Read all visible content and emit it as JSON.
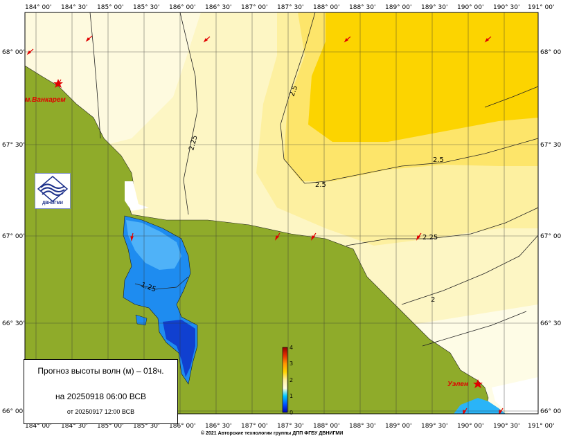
{
  "map": {
    "lon_labels": [
      "184° 00'",
      "184° 30'",
      "185° 00'",
      "185° 30'",
      "186° 00'",
      "186° 30'",
      "187° 00'",
      "187° 30'",
      "188° 00'",
      "188° 30'",
      "189° 00'",
      "189° 30'",
      "190° 00'",
      "190° 30'",
      "191° 00'"
    ],
    "lat_labels": [
      "68° 00'",
      "67° 30'",
      "67° 00'",
      "66° 30'",
      "66° 00'"
    ],
    "places": [
      "м.Ванкарем",
      "Уэлен"
    ],
    "contour_labels": [
      "2.5",
      "2.5",
      "2.5",
      "2.25",
      "2.25",
      "2",
      "1.25"
    ],
    "colorbar": {
      "ticks": [
        "0",
        "1",
        "2",
        "3",
        "4"
      ]
    },
    "colors": {
      "land": "#8fab2a",
      "sea_low": "#1e70f0",
      "sea_mid": "#fcf5c0",
      "sea_high": "#ffd400"
    }
  },
  "info": {
    "title": "Прогноз высоты волн (м) – 018ч.",
    "valid": "на 20250918 06:00 ВСВ",
    "issued": "от 20250917 12:00 ВСВ"
  },
  "logo": {
    "text": "ДВНИГМИ",
    "icon": "dvnigmi-logo-icon"
  },
  "copyright": "© 2021 Авторские технологии группы ДПП ФГБУ ДВНИГМИ"
}
